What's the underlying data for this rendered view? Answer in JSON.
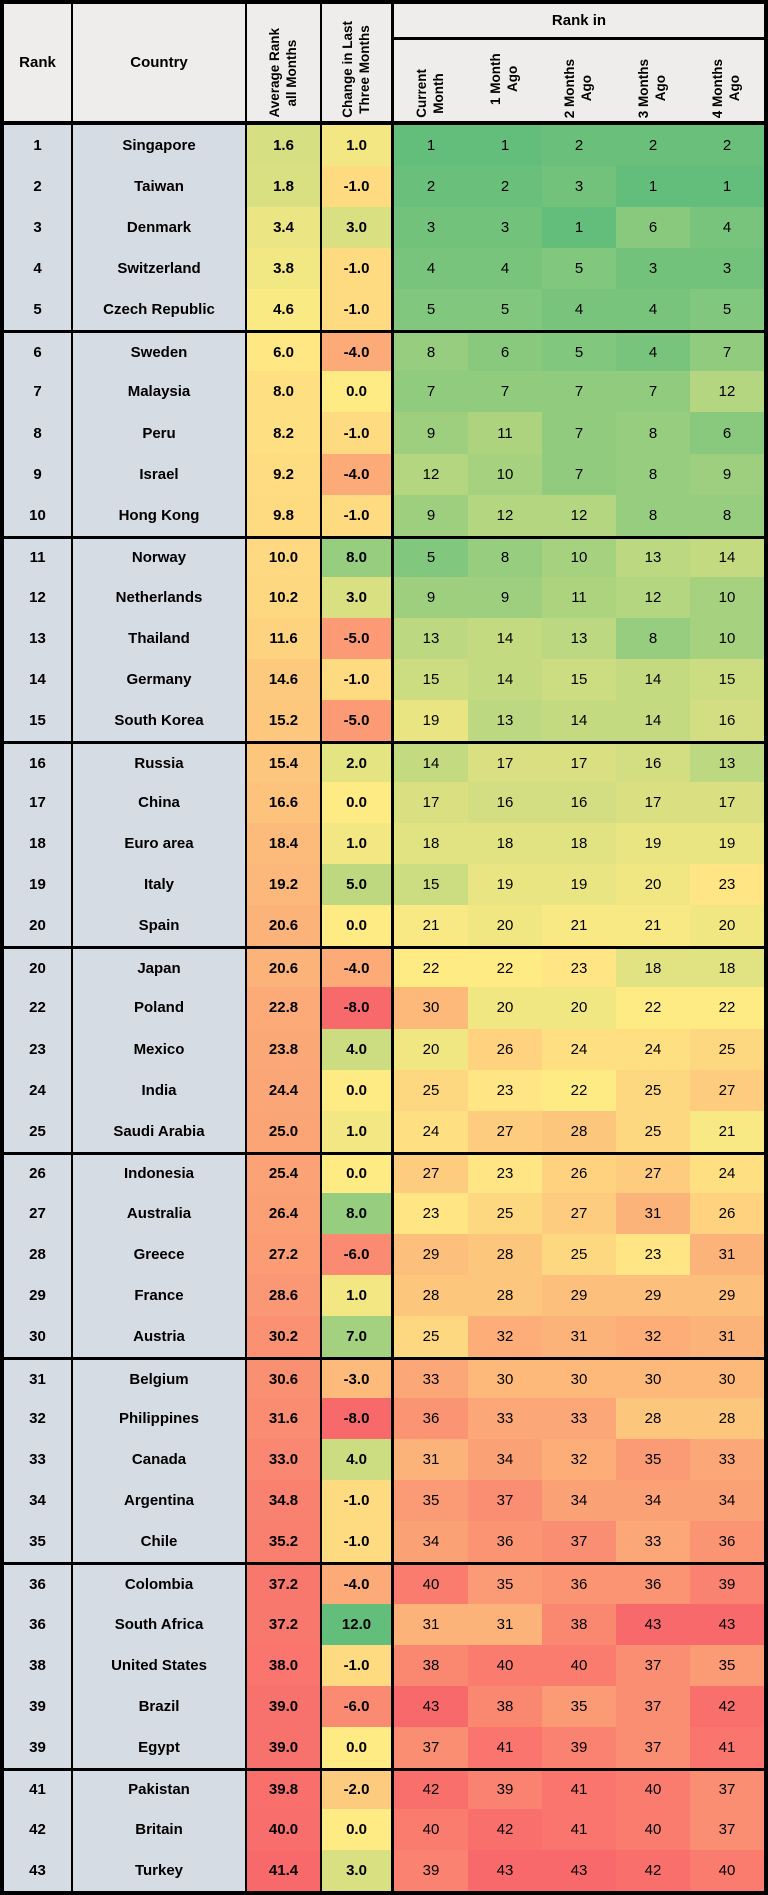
{
  "header": {
    "rank_label": "Rank",
    "country_label": "Country",
    "avg_label": "Average Rank\nall Months",
    "change_label": "Change in Last\nThree Months",
    "rank_in_label": "Rank in",
    "months": [
      "Current\nMonth",
      "1 Month Ago",
      "2 Months\nAgo",
      "3 Months\nAgo",
      "4 Months\nAgo"
    ]
  },
  "colors": {
    "header_bg": "#EFEDEC",
    "label_column_bg": "#D6DCE4",
    "border": "#000000",
    "scale_green": "#63BE7B",
    "scale_yellow": "#FFEB84",
    "scale_red": "#F8696B"
  },
  "chart_data": {
    "type": "table",
    "title": "Country rank heatmap table",
    "columns": [
      "Rank",
      "Country",
      "Average Rank all Months",
      "Change in Last Three Months",
      "Current Month",
      "1 Month Ago",
      "2 Months Ago",
      "3 Months Ago",
      "4 Months Ago"
    ],
    "group_size": 5,
    "color_scales": {
      "rank": {
        "min": 1,
        "mid": 22,
        "max": 43,
        "c0": "#63BE7B",
        "c1": "#FFEB84",
        "c2": "#F8696B"
      },
      "avg": {
        "min": -8,
        "mid": 5,
        "max": 41.4,
        "c0": "#63BE7B",
        "c1": "#FFEB84",
        "c2": "#F8696B"
      },
      "change": {
        "min": -8,
        "mid": 0,
        "max": 12,
        "c0": "#F8696B",
        "c1": "#FFEB84",
        "c2": "#63BE7B"
      }
    },
    "rows": [
      {
        "rank": 1,
        "country": "Singapore",
        "avg": 1.6,
        "change": 1.0,
        "ranks": [
          1,
          1,
          2,
          2,
          2
        ]
      },
      {
        "rank": 2,
        "country": "Taiwan",
        "avg": 1.8,
        "change": -1.0,
        "ranks": [
          2,
          2,
          3,
          1,
          1
        ]
      },
      {
        "rank": 3,
        "country": "Denmark",
        "avg": 3.4,
        "change": 3.0,
        "ranks": [
          3,
          3,
          1,
          6,
          4
        ]
      },
      {
        "rank": 4,
        "country": "Switzerland",
        "avg": 3.8,
        "change": -1.0,
        "ranks": [
          4,
          4,
          5,
          3,
          3
        ]
      },
      {
        "rank": 5,
        "country": "Czech Republic",
        "avg": 4.6,
        "change": -1.0,
        "ranks": [
          5,
          5,
          4,
          4,
          5
        ]
      },
      {
        "rank": 6,
        "country": "Sweden",
        "avg": 6.0,
        "change": -4.0,
        "ranks": [
          8,
          6,
          5,
          4,
          7
        ]
      },
      {
        "rank": 7,
        "country": "Malaysia",
        "avg": 8.0,
        "change": 0.0,
        "ranks": [
          7,
          7,
          7,
          7,
          12
        ]
      },
      {
        "rank": 8,
        "country": "Peru",
        "avg": 8.2,
        "change": -1.0,
        "ranks": [
          9,
          11,
          7,
          8,
          6
        ]
      },
      {
        "rank": 9,
        "country": "Israel",
        "avg": 9.2,
        "change": -4.0,
        "ranks": [
          12,
          10,
          7,
          8,
          9
        ]
      },
      {
        "rank": 10,
        "country": "Hong Kong",
        "avg": 9.8,
        "change": -1.0,
        "ranks": [
          9,
          12,
          12,
          8,
          8
        ]
      },
      {
        "rank": 11,
        "country": "Norway",
        "avg": 10.0,
        "change": 8.0,
        "ranks": [
          5,
          8,
          10,
          13,
          14
        ]
      },
      {
        "rank": 12,
        "country": "Netherlands",
        "avg": 10.2,
        "change": 3.0,
        "ranks": [
          9,
          9,
          11,
          12,
          10
        ]
      },
      {
        "rank": 13,
        "country": "Thailand",
        "avg": 11.6,
        "change": -5.0,
        "ranks": [
          13,
          14,
          13,
          8,
          10
        ]
      },
      {
        "rank": 14,
        "country": "Germany",
        "avg": 14.6,
        "change": -1.0,
        "ranks": [
          15,
          14,
          15,
          14,
          15
        ]
      },
      {
        "rank": 15,
        "country": "South Korea",
        "avg": 15.2,
        "change": -5.0,
        "ranks": [
          19,
          13,
          14,
          14,
          16
        ]
      },
      {
        "rank": 16,
        "country": "Russia",
        "avg": 15.4,
        "change": 2.0,
        "ranks": [
          14,
          17,
          17,
          16,
          13
        ]
      },
      {
        "rank": 17,
        "country": "China",
        "avg": 16.6,
        "change": 0.0,
        "ranks": [
          17,
          16,
          16,
          17,
          17
        ]
      },
      {
        "rank": 18,
        "country": "Euro area",
        "avg": 18.4,
        "change": 1.0,
        "ranks": [
          18,
          18,
          18,
          19,
          19
        ]
      },
      {
        "rank": 19,
        "country": "Italy",
        "avg": 19.2,
        "change": 5.0,
        "ranks": [
          15,
          19,
          19,
          20,
          23
        ]
      },
      {
        "rank": 20,
        "country": "Spain",
        "avg": 20.6,
        "change": 0.0,
        "ranks": [
          21,
          20,
          21,
          21,
          20
        ]
      },
      {
        "rank": 20,
        "country": "Japan",
        "avg": 20.6,
        "change": -4.0,
        "ranks": [
          22,
          22,
          23,
          18,
          18
        ]
      },
      {
        "rank": 22,
        "country": "Poland",
        "avg": 22.8,
        "change": -8.0,
        "ranks": [
          30,
          20,
          20,
          22,
          22
        ]
      },
      {
        "rank": 23,
        "country": "Mexico",
        "avg": 23.8,
        "change": 4.0,
        "ranks": [
          20,
          26,
          24,
          24,
          25
        ]
      },
      {
        "rank": 24,
        "country": "India",
        "avg": 24.4,
        "change": 0.0,
        "ranks": [
          25,
          23,
          22,
          25,
          27
        ]
      },
      {
        "rank": 25,
        "country": "Saudi Arabia",
        "avg": 25.0,
        "change": 1.0,
        "ranks": [
          24,
          27,
          28,
          25,
          21
        ]
      },
      {
        "rank": 26,
        "country": "Indonesia",
        "avg": 25.4,
        "change": 0.0,
        "ranks": [
          27,
          23,
          26,
          27,
          24
        ]
      },
      {
        "rank": 27,
        "country": "Australia",
        "avg": 26.4,
        "change": 8.0,
        "ranks": [
          23,
          25,
          27,
          31,
          26
        ]
      },
      {
        "rank": 28,
        "country": "Greece",
        "avg": 27.2,
        "change": -6.0,
        "ranks": [
          29,
          28,
          25,
          23,
          31
        ]
      },
      {
        "rank": 29,
        "country": "France",
        "avg": 28.6,
        "change": 1.0,
        "ranks": [
          28,
          28,
          29,
          29,
          29
        ]
      },
      {
        "rank": 30,
        "country": "Austria",
        "avg": 30.2,
        "change": 7.0,
        "ranks": [
          25,
          32,
          31,
          32,
          31
        ]
      },
      {
        "rank": 31,
        "country": "Belgium",
        "avg": 30.6,
        "change": -3.0,
        "ranks": [
          33,
          30,
          30,
          30,
          30
        ]
      },
      {
        "rank": 32,
        "country": "Philippines",
        "avg": 31.6,
        "change": -8.0,
        "ranks": [
          36,
          33,
          33,
          28,
          28
        ]
      },
      {
        "rank": 33,
        "country": "Canada",
        "avg": 33.0,
        "change": 4.0,
        "ranks": [
          31,
          34,
          32,
          35,
          33
        ]
      },
      {
        "rank": 34,
        "country": "Argentina",
        "avg": 34.8,
        "change": -1.0,
        "ranks": [
          35,
          37,
          34,
          34,
          34
        ]
      },
      {
        "rank": 35,
        "country": "Chile",
        "avg": 35.2,
        "change": -1.0,
        "ranks": [
          34,
          36,
          37,
          33,
          36
        ]
      },
      {
        "rank": 36,
        "country": "Colombia",
        "avg": 37.2,
        "change": -4.0,
        "ranks": [
          40,
          35,
          36,
          36,
          39
        ]
      },
      {
        "rank": 36,
        "country": "South Africa",
        "avg": 37.2,
        "change": 12.0,
        "ranks": [
          31,
          31,
          38,
          43,
          43
        ]
      },
      {
        "rank": 38,
        "country": "United States",
        "avg": 38.0,
        "change": -1.0,
        "ranks": [
          38,
          40,
          40,
          37,
          35
        ]
      },
      {
        "rank": 39,
        "country": "Brazil",
        "avg": 39.0,
        "change": -6.0,
        "ranks": [
          43,
          38,
          35,
          37,
          42
        ]
      },
      {
        "rank": 39,
        "country": "Egypt",
        "avg": 39.0,
        "change": 0.0,
        "ranks": [
          37,
          41,
          39,
          37,
          41
        ]
      },
      {
        "rank": 41,
        "country": "Pakistan",
        "avg": 39.8,
        "change": -2.0,
        "ranks": [
          42,
          39,
          41,
          40,
          37
        ]
      },
      {
        "rank": 42,
        "country": "Britain",
        "avg": 40.0,
        "change": 0.0,
        "ranks": [
          40,
          42,
          41,
          40,
          37
        ]
      },
      {
        "rank": 43,
        "country": "Turkey",
        "avg": 41.4,
        "change": 3.0,
        "ranks": [
          39,
          43,
          43,
          42,
          40
        ]
      }
    ]
  }
}
